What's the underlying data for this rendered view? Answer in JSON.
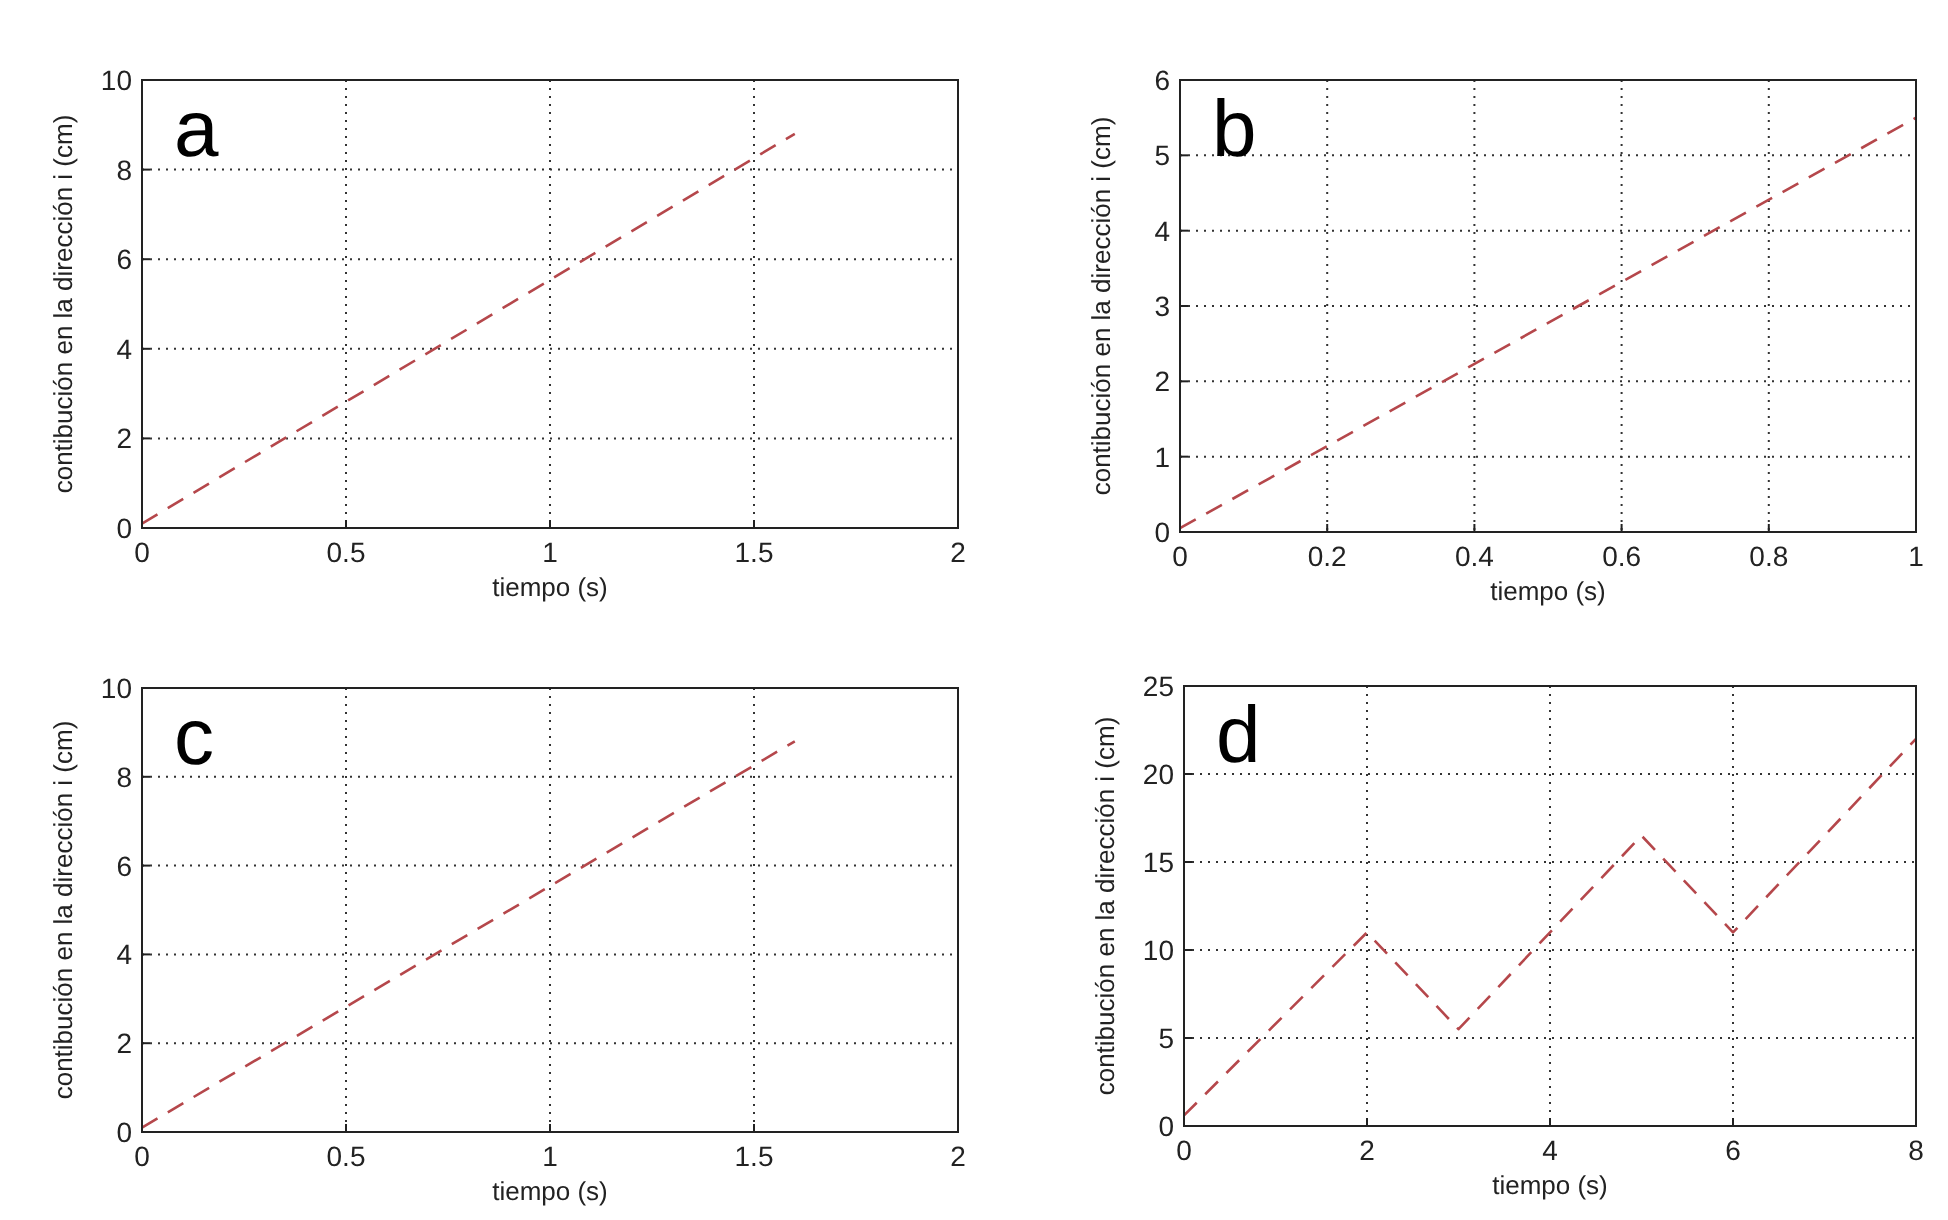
{
  "chart_data": [
    {
      "type": "line",
      "x": [
        0,
        1.6
      ],
      "series": [
        {
          "color": "#b5474b",
          "values": [
            0.1,
            8.8
          ]
        }
      ],
      "xlim": [
        0,
        2
      ],
      "ylim": [
        0,
        10
      ],
      "xticks": [
        0,
        0.5,
        1,
        1.5,
        2
      ],
      "yticks": [
        0,
        2,
        4,
        6,
        8,
        10
      ],
      "xlabel": "tiempo (s)",
      "ylabel": "contibución en la dirección i (cm)",
      "grid": true,
      "line_style": "dashed",
      "annotations": [
        "a"
      ]
    },
    {
      "type": "line",
      "x": [
        0,
        1
      ],
      "series": [
        {
          "color": "#b5474b",
          "values": [
            0.05,
            5.5
          ]
        }
      ],
      "xlim": [
        0,
        1
      ],
      "ylim": [
        0,
        6
      ],
      "xticks": [
        0,
        0.2,
        0.4,
        0.6,
        0.8,
        1
      ],
      "yticks": [
        0,
        1,
        2,
        3,
        4,
        5,
        6
      ],
      "xlabel": "tiempo (s)",
      "ylabel": "contibución en la dirección i (cm)",
      "grid": true,
      "line_style": "dashed",
      "annotations": [
        "b"
      ]
    },
    {
      "type": "line",
      "x": [
        0,
        1.6
      ],
      "series": [
        {
          "color": "#b5474b",
          "values": [
            0.1,
            8.8
          ]
        }
      ],
      "xlim": [
        0,
        2
      ],
      "ylim": [
        0,
        10
      ],
      "xticks": [
        0,
        0.5,
        1,
        1.5,
        2
      ],
      "yticks": [
        0,
        2,
        4,
        6,
        8,
        10
      ],
      "xlabel": "tiempo (s)",
      "ylabel": "contibución en la dirección i (cm)",
      "grid": true,
      "line_style": "dashed",
      "annotations": [
        "c"
      ]
    },
    {
      "type": "line",
      "x": [
        0,
        2,
        3,
        5,
        6,
        8
      ],
      "series": [
        {
          "color": "#b5474b",
          "values": [
            0.6,
            11,
            5.5,
            16.5,
            11,
            22
          ]
        }
      ],
      "xlim": [
        0,
        8
      ],
      "ylim": [
        0,
        25
      ],
      "xticks": [
        0,
        2,
        4,
        6,
        8
      ],
      "yticks": [
        0,
        5,
        10,
        15,
        20,
        25
      ],
      "xlabel": "tiempo (s)",
      "ylabel": "contibución en la dirección i (cm)",
      "grid": true,
      "line_style": "dashed",
      "annotations": [
        "d"
      ]
    }
  ]
}
